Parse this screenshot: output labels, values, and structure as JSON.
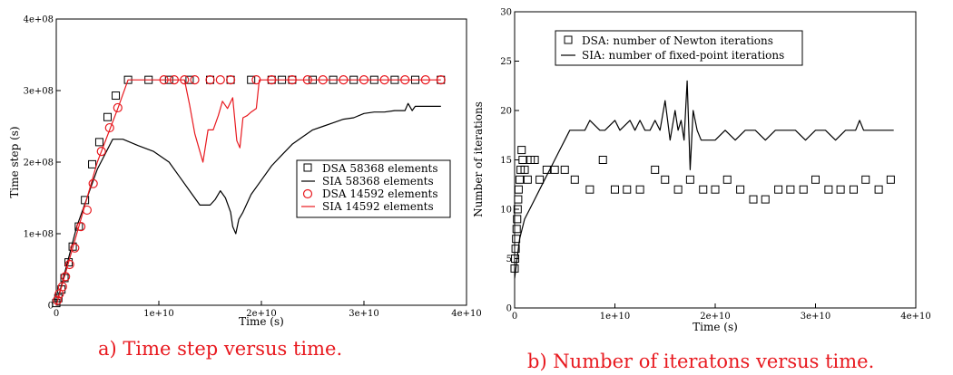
{
  "colors": {
    "black": "#000000",
    "red": "#e8191f",
    "caption": "#e8191f"
  },
  "chart_data": [
    {
      "type": "line",
      "caption": "a) Time step versus time.",
      "xlabel": "Time (s)",
      "ylabel": "Time step (s)",
      "xlim": [
        0,
        40000000000
      ],
      "ylim": [
        0,
        400000000
      ],
      "xticks": [
        0,
        10000000000,
        20000000000,
        30000000000,
        40000000000
      ],
      "xtick_labels": [
        "0",
        "1e+10",
        "2e+10",
        "3e+10",
        "4e+10"
      ],
      "yticks": [
        0,
        100000000,
        200000000,
        300000000,
        400000000
      ],
      "ytick_labels": [
        "0",
        "1e+08",
        "2e+08",
        "3e+08",
        "4e+08"
      ],
      "grid": false,
      "legend_position": "center-right",
      "series": [
        {
          "name": "DSA 58368 elements",
          "style": "square-markers",
          "color": "#000000",
          "x": [
            0,
            200000000,
            500000000,
            800000000,
            1200000000,
            1600000000,
            2200000000,
            2800000000,
            3500000000,
            4200000000,
            5000000000,
            5800000000,
            7000000000,
            9000000000,
            11000000000,
            13000000000,
            15000000000,
            17000000000,
            19000000000,
            21000000000,
            22000000000,
            23000000000,
            25000000000,
            27000000000,
            29000000000,
            31000000000,
            33000000000,
            35000000000,
            37500000000
          ],
          "y": [
            3000000,
            10000000,
            22000000,
            38000000,
            60000000,
            82000000,
            110000000,
            147000000,
            197000000,
            228000000,
            263000000,
            293000000,
            315000000,
            315000000,
            315000000,
            315000000,
            315000000,
            315000000,
            315000000,
            315000000,
            315000000,
            315000000,
            315000000,
            315000000,
            315000000,
            315000000,
            315000000,
            315000000,
            315000000
          ]
        },
        {
          "name": "SIA 58368 elements",
          "style": "line",
          "color": "#000000",
          "x": [
            0,
            2000000000,
            4000000000,
            5500000000,
            6500000000,
            8000000000,
            9500000000,
            11000000000,
            12000000000,
            13000000000,
            14000000000,
            15000000000,
            15500000000,
            16000000000,
            16500000000,
            17000000000,
            17200000000,
            17500000000,
            17800000000,
            18200000000,
            19000000000,
            20000000000,
            21000000000,
            22000000000,
            23000000000,
            24000000000,
            25000000000,
            26000000000,
            27000000000,
            28000000000,
            29000000000,
            30000000000,
            31000000000,
            32000000000,
            33000000000,
            34000000000,
            34300000000,
            34700000000,
            35000000000,
            36000000000,
            37500000000
          ],
          "y": [
            0,
            110000000,
            190000000,
            232000000,
            232000000,
            223000000,
            215000000,
            200000000,
            180000000,
            160000000,
            140000000,
            140000000,
            148000000,
            160000000,
            150000000,
            130000000,
            110000000,
            100000000,
            120000000,
            130000000,
            155000000,
            175000000,
            195000000,
            210000000,
            225000000,
            235000000,
            245000000,
            250000000,
            255000000,
            260000000,
            262000000,
            268000000,
            270000000,
            270000000,
            272000000,
            272000000,
            282000000,
            272000000,
            278000000,
            278000000,
            278000000
          ]
        },
        {
          "name": "DSA 14592 elements",
          "style": "circle-markers",
          "color": "#e8191f",
          "x": [
            100000000,
            300000000,
            600000000,
            900000000,
            1300000000,
            1800000000,
            2400000000,
            3000000000,
            3600000000,
            4400000000,
            5200000000,
            6000000000,
            10500000000,
            11500000000,
            12500000000,
            13500000000,
            15000000000,
            16000000000,
            17000000000,
            19500000000,
            21000000000,
            23000000000,
            24500000000,
            26000000000,
            28000000000,
            30000000000,
            32000000000,
            34000000000,
            36000000000,
            37500000000
          ],
          "y": [
            7000000,
            16000000,
            26000000,
            40000000,
            57000000,
            80000000,
            110000000,
            133000000,
            170000000,
            215000000,
            248000000,
            276000000,
            315000000,
            315000000,
            315000000,
            315000000,
            315000000,
            315000000,
            315000000,
            315000000,
            315000000,
            315000000,
            315000000,
            315000000,
            315000000,
            315000000,
            315000000,
            315000000,
            315000000,
            315000000
          ]
        },
        {
          "name": "SIA 14592 elements",
          "style": "line",
          "color": "#e8191f",
          "x": [
            0,
            2000000000,
            4000000000,
            6000000000,
            7000000000,
            12500000000,
            13000000000,
            13500000000,
            14000000000,
            14300000000,
            14800000000,
            15300000000,
            15800000000,
            16200000000,
            16700000000,
            17200000000,
            17600000000,
            17900000000,
            18200000000,
            18600000000,
            19000000000,
            19500000000,
            19800000000,
            20500000000,
            37500000000
          ],
          "y": [
            0,
            100000000,
            200000000,
            275000000,
            315000000,
            315000000,
            280000000,
            240000000,
            215000000,
            200000000,
            245000000,
            245000000,
            265000000,
            285000000,
            275000000,
            290000000,
            230000000,
            220000000,
            262000000,
            265000000,
            270000000,
            275000000,
            315000000,
            315000000,
            315000000
          ]
        }
      ]
    },
    {
      "type": "line",
      "caption": "b) Number of iteratons versus time.",
      "xlabel": "Time (s)",
      "ylabel": "Number of iterations",
      "xlim": [
        0,
        40000000000
      ],
      "ylim": [
        0,
        30
      ],
      "xticks": [
        0,
        10000000000,
        20000000000,
        30000000000,
        40000000000
      ],
      "xtick_labels": [
        "0",
        "1e+10",
        "2e+10",
        "3e+10",
        "4e+10"
      ],
      "yticks": [
        0,
        5,
        10,
        15,
        20,
        25,
        30
      ],
      "ytick_labels": [
        "0",
        "5",
        "10",
        "15",
        "20",
        "25",
        "30"
      ],
      "grid": false,
      "legend_position": "top-left",
      "series": [
        {
          "name": "DSA: number of Newton iterations",
          "style": "square-markers",
          "color": "#000000",
          "x": [
            0,
            50000000,
            100000000,
            150000000,
            200000000,
            250000000,
            300000000,
            350000000,
            400000000,
            500000000,
            600000000,
            700000000,
            800000000,
            1000000000,
            1300000000,
            1600000000,
            2000000000,
            2500000000,
            3200000000,
            4000000000,
            5000000000,
            6000000000,
            7500000000,
            8800000000,
            10000000000,
            11200000000,
            12500000000,
            14000000000,
            15000000000,
            16300000000,
            17500000000,
            18800000000,
            20000000000,
            21200000000,
            22500000000,
            23800000000,
            25000000000,
            26300000000,
            27500000000,
            28800000000,
            30000000000,
            31300000000,
            32500000000,
            33800000000,
            35000000000,
            36300000000,
            37500000000
          ],
          "y": [
            4,
            5,
            6,
            7,
            8,
            9,
            10,
            11,
            12,
            13,
            14,
            16,
            15,
            14,
            13,
            15,
            15,
            13,
            14,
            14,
            14,
            13,
            12,
            15,
            12,
            12,
            12,
            14,
            13,
            12,
            13,
            12,
            12,
            13,
            12,
            11,
            11,
            12,
            12,
            12,
            13,
            12,
            12,
            12,
            13,
            12,
            13
          ]
        },
        {
          "name": "SIA: number of fixed-point iterations",
          "style": "line",
          "color": "#000000",
          "x": [
            0,
            500000000,
            1000000000,
            1500000000,
            2000000000,
            2500000000,
            3000000000,
            3500000000,
            4000000000,
            4500000000,
            5000000000,
            5500000000,
            6000000000,
            7000000000,
            7500000000,
            8500000000,
            9000000000,
            10000000000,
            10500000000,
            11500000000,
            12000000000,
            12500000000,
            13000000000,
            13500000000,
            14000000000,
            14500000000,
            15000000000,
            15500000000,
            16000000000,
            16300000000,
            16600000000,
            16900000000,
            17200000000,
            17500000000,
            17800000000,
            18200000000,
            18600000000,
            19000000000,
            19500000000,
            20000000000,
            21000000000,
            22000000000,
            23000000000,
            24000000000,
            25000000000,
            26000000000,
            27000000000,
            28000000000,
            29000000000,
            30000000000,
            31000000000,
            32000000000,
            33000000000,
            34000000000,
            34400000000,
            34800000000,
            35500000000,
            36500000000,
            37800000000
          ],
          "y": [
            3,
            7,
            9,
            10,
            11,
            12,
            13,
            14,
            15,
            16,
            17,
            18,
            18,
            18,
            19,
            18,
            18,
            19,
            18,
            19,
            18,
            19,
            18,
            18,
            19,
            18,
            21,
            17,
            20,
            18,
            19,
            17,
            23,
            14,
            20,
            18,
            17,
            17,
            17,
            17,
            18,
            17,
            18,
            18,
            17,
            18,
            18,
            18,
            17,
            18,
            18,
            17,
            18,
            18,
            19,
            18,
            18,
            18,
            18
          ]
        }
      ]
    }
  ]
}
